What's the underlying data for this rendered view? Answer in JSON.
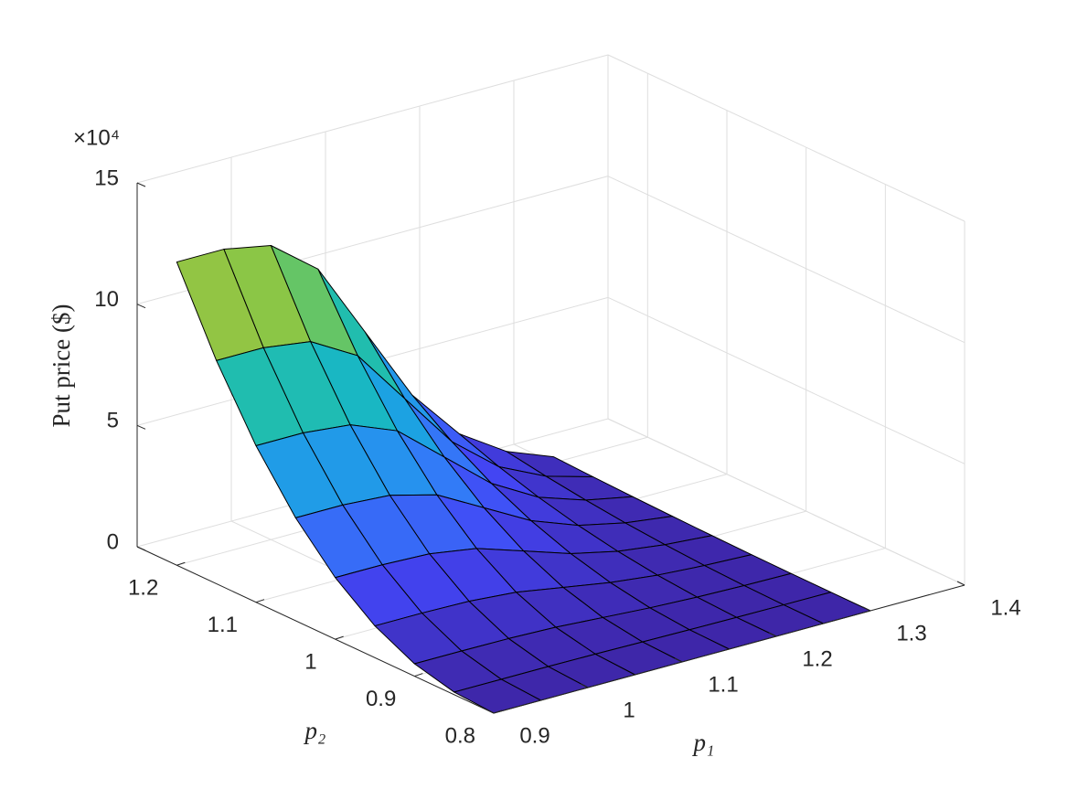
{
  "chart_data": {
    "type": "surface",
    "x_label": "p₁",
    "y_label": "p₂",
    "z_label": "Put price ($)",
    "z_multiplier": "×10⁴",
    "x": [
      0.9,
      0.95,
      1.0,
      1.05,
      1.1,
      1.15,
      1.2,
      1.25,
      1.3
    ],
    "y": [
      0.8,
      0.85,
      0.9,
      0.95,
      1.0,
      1.05,
      1.1,
      1.15,
      1.2
    ],
    "z": [
      [
        0,
        0,
        0,
        0,
        0,
        0,
        0,
        0,
        0
      ],
      [
        1060,
        1060,
        1030,
        900,
        640,
        370,
        190,
        80,
        20
      ],
      [
        5100,
        5100,
        4950,
        4340,
        3060,
        1790,
        920,
        410,
        100
      ],
      [
        13100,
        13100,
        12710,
        11140,
        7860,
        4590,
        2360,
        1050,
        260
      ],
      [
        25400,
        25400,
        24640,
        21590,
        15240,
        8890,
        4570,
        2030,
        510
      ],
      [
        42400,
        42400,
        41130,
        36040,
        25440,
        14840,
        7630,
        3390,
        850
      ],
      [
        64500,
        64500,
        62570,
        54830,
        38700,
        22580,
        11610,
        5160,
        1290
      ],
      [
        92000,
        92000,
        89240,
        78200,
        55200,
        32200,
        16560,
        7360,
        1840
      ],
      [
        125000,
        125000,
        121250,
        106250,
        75000,
        43750,
        22500,
        10000,
        2500
      ]
    ],
    "xlim": [
      0.9,
      1.4
    ],
    "xticks": [
      0.9,
      1,
      1.1,
      1.2,
      1.3,
      1.4
    ],
    "ylim": [
      0.8,
      1.25
    ],
    "yticks": [
      0.8,
      0.9,
      1,
      1.1,
      1.2
    ],
    "zlim": [
      0,
      150000
    ],
    "zticks": [
      {
        "value": 0,
        "label": "0"
      },
      {
        "value": 50000,
        "label": "5"
      },
      {
        "value": 100000,
        "label": "10"
      },
      {
        "value": 150000,
        "label": "15"
      }
    ],
    "grid": true,
    "mesh_color": "#000000",
    "colormap": [
      "#3e26a8",
      "#4346f6",
      "#2e87f7",
      "#12b1d7",
      "#28c39a",
      "#8cc645",
      "#e6bb3b",
      "#f9f816"
    ]
  }
}
